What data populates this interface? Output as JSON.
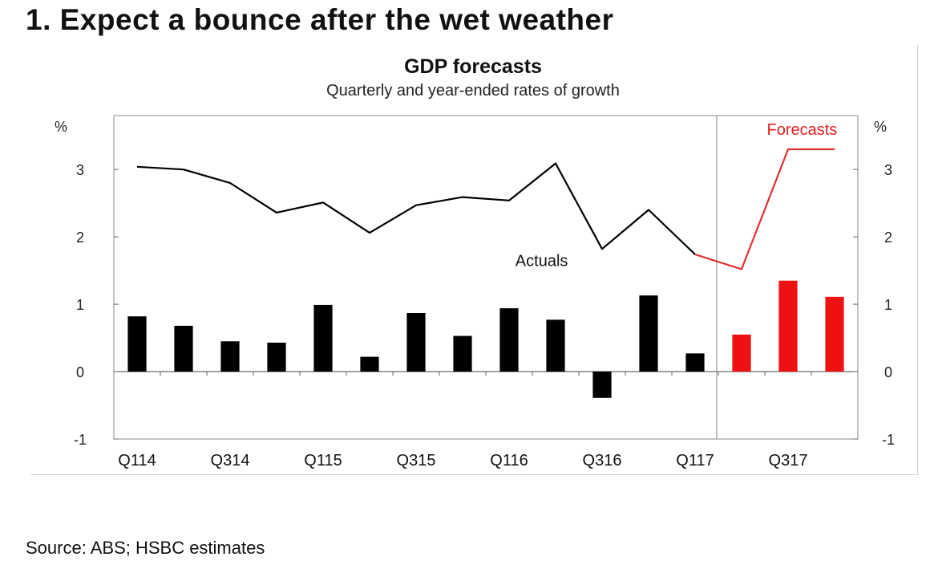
{
  "heading": "1. Expect a bounce after the wet weather",
  "source": "Source:  ABS; HSBC estimates",
  "chart_data": {
    "type": "bar",
    "title": "GDP forecasts",
    "subtitle": "Quarterly and year-ended rates of growth",
    "y_unit_left": "%",
    "y_unit_right": "%",
    "ylim": [
      -1,
      3.8
    ],
    "yticks": [
      "-1",
      "0",
      "1",
      "2",
      "3"
    ],
    "xtick_labels": [
      "Q114",
      "Q314",
      "Q115",
      "Q315",
      "Q116",
      "Q316",
      "Q117",
      "Q317"
    ],
    "xtick_positions": [
      0,
      2,
      4,
      6,
      8,
      10,
      12,
      14
    ],
    "categories": [
      "Q114",
      "Q214",
      "Q314",
      "Q414",
      "Q115",
      "Q215",
      "Q315",
      "Q415",
      "Q116",
      "Q216",
      "Q316",
      "Q416",
      "Q117",
      "Q217",
      "Q317",
      "Q417"
    ],
    "forecast_start_index": 13,
    "series": [
      {
        "kind": "bar",
        "values": [
          0.82,
          0.68,
          0.45,
          0.43,
          0.99,
          0.22,
          0.87,
          0.53,
          0.94,
          0.77,
          -0.39,
          1.13,
          0.27,
          0.55,
          1.35,
          1.11
        ]
      },
      {
        "kind": "line",
        "values": [
          3.04,
          3.0,
          2.8,
          2.36,
          2.51,
          2.06,
          2.47,
          2.59,
          2.54,
          3.09,
          1.82,
          2.4,
          1.74,
          1.52,
          3.3,
          3.3
        ]
      }
    ],
    "annotations": [
      {
        "text": "Actuals",
        "x": 8.7,
        "y": 1.65,
        "color": "#111111"
      },
      {
        "text": "Forecasts",
        "x": 14.3,
        "y": 3.6,
        "color": "#e02020"
      }
    ],
    "colors": {
      "actual": "#000000",
      "forecast": "#ee1111",
      "forecast_line": "#e03030",
      "divider": "#999999"
    },
    "grid": false
  }
}
